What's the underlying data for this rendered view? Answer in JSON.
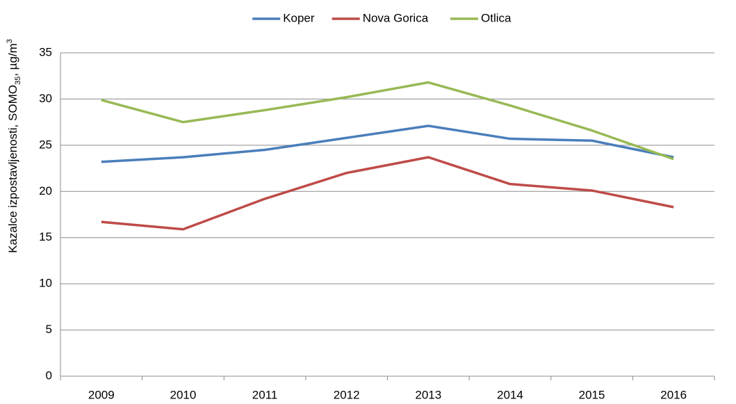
{
  "chart_data": {
    "type": "line",
    "ylabel": [
      "Kazalce izpostavljenosti, SOMO",
      "35",
      ", µg/m",
      "3"
    ],
    "categories": [
      "2009",
      "2010",
      "2011",
      "2012",
      "2013",
      "2014",
      "2015",
      "2016"
    ],
    "series": [
      {
        "name": "Koper",
        "color": "#4a7ebb",
        "values": [
          23.2,
          23.7,
          24.5,
          25.8,
          27.1,
          25.7,
          25.5,
          23.7
        ]
      },
      {
        "name": "Nova Gorica",
        "color": "#be4b48",
        "values": [
          16.7,
          15.9,
          19.2,
          22.0,
          23.7,
          20.8,
          20.1,
          18.3
        ]
      },
      {
        "name": "Otlica",
        "color": "#98b954",
        "values": [
          29.9,
          27.5,
          28.8,
          30.2,
          31.8,
          29.3,
          26.6,
          23.5
        ]
      }
    ],
    "ylim": [
      0,
      35
    ],
    "yticks": [
      0,
      5,
      10,
      15,
      20,
      25,
      30,
      35
    ],
    "grid": true,
    "legend": "top"
  }
}
